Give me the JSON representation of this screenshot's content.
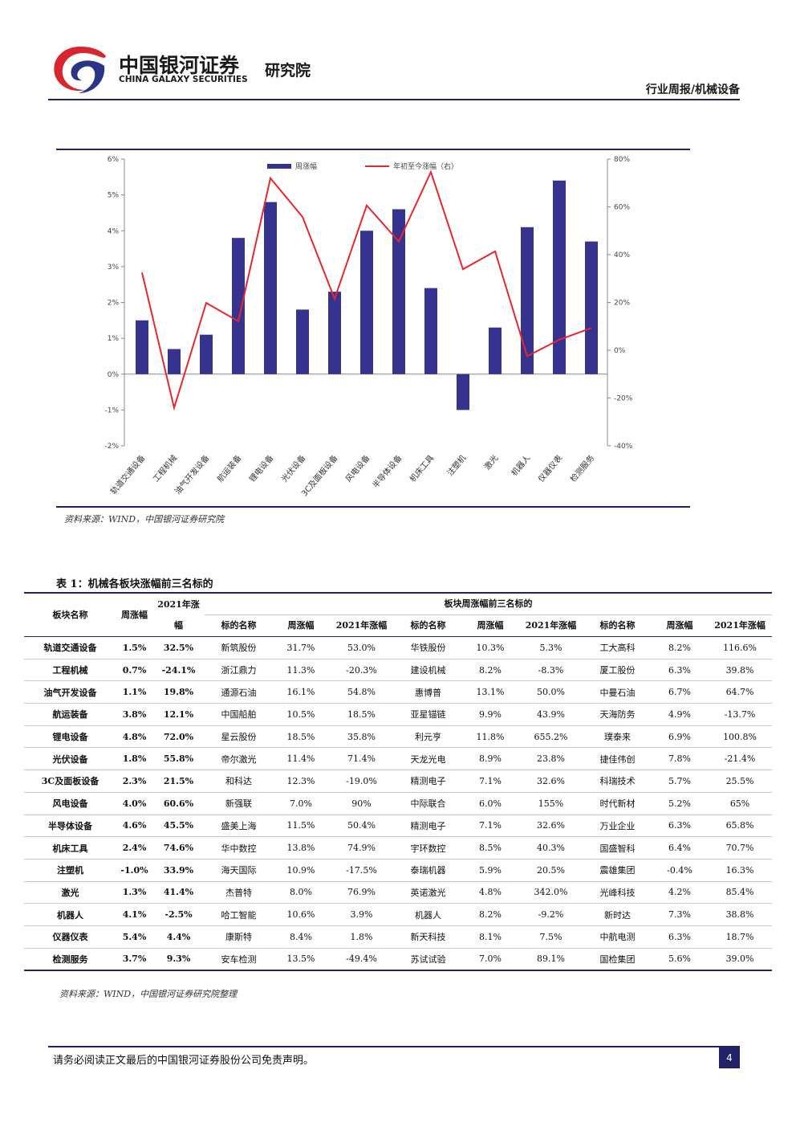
{
  "header": {
    "brand": "中国银河证券",
    "brand_en": "CHINA GALAXY SECURITIES",
    "institute": "研究院",
    "report": "行业周报/机械设备"
  },
  "chart_data": {
    "type": "bar",
    "categories": [
      "轨道交通设备",
      "工程机械",
      "油气开发设备",
      "航运装备",
      "锂电设备",
      "光伏设备",
      "3C及面板设备",
      "风电设备",
      "半导体设备",
      "机床工具",
      "注塑机",
      "激光",
      "机器人",
      "仪器仪表",
      "检测服务"
    ],
    "series": [
      {
        "name": "周涨幅",
        "color": "#35338f",
        "values": [
          1.5,
          0.7,
          1.1,
          3.8,
          4.8,
          1.8,
          2.3,
          4.0,
          4.6,
          2.4,
          -1.0,
          1.3,
          4.1,
          5.4,
          3.7
        ]
      },
      {
        "name": "年初至今涨幅（右）",
        "color": "#e8262c",
        "type": "line",
        "axis": "y2",
        "values": [
          32.5,
          -24.1,
          19.8,
          12.1,
          72.0,
          55.8,
          21.5,
          60.6,
          45.5,
          74.6,
          33.9,
          41.4,
          -2.5,
          4.4,
          9.3
        ]
      }
    ],
    "ylim": [
      -2,
      6
    ],
    "yticks": [
      {
        "value": -2,
        "label": "-2%"
      },
      {
        "value": -1,
        "label": "-1%"
      },
      {
        "value": 0,
        "label": "0%"
      },
      {
        "value": 1,
        "label": "1%"
      },
      {
        "value": 2,
        "label": "2%"
      },
      {
        "value": 3,
        "label": "3%"
      },
      {
        "value": 4,
        "label": "4%"
      },
      {
        "value": 5,
        "label": "5%"
      },
      {
        "value": 6,
        "label": "6%"
      }
    ],
    "y2lim": [
      -40,
      80
    ],
    "y2ticks": [
      {
        "value": -40,
        "label": "-40%"
      },
      {
        "value": -20,
        "label": "-20%"
      },
      {
        "value": 0,
        "label": "0%"
      },
      {
        "value": 20,
        "label": "20%"
      },
      {
        "value": 40,
        "label": "40%"
      },
      {
        "value": 60,
        "label": "60%"
      },
      {
        "value": 80,
        "label": "80%"
      }
    ],
    "legend": "top",
    "grid": false
  },
  "chart_source": "资料来源：WIND，中国银河证券研究院",
  "table": {
    "title": "表 1：机械各板块涨幅前三名标的",
    "headers": [
      "板块名称",
      "周涨幅",
      "2021年涨幅",
      "板块周涨幅前三名标的"
    ],
    "sub_headers": [
      "标的名称",
      "周涨幅",
      "2021年涨幅",
      "标的名称",
      "周涨幅",
      "2021年涨幅",
      "标的名称",
      "周涨幅",
      "2021年涨幅"
    ],
    "rows": [
      [
        "轨道交通设备",
        "1.5%",
        "32.5%",
        "新筑股份",
        "31.7%",
        "53.0%",
        "华铁股份",
        "10.3%",
        "5.3%",
        "工大高科",
        "8.2%",
        "116.6%"
      ],
      [
        "工程机械",
        "0.7%",
        "-24.1%",
        "浙江鼎力",
        "11.3%",
        "-20.3%",
        "建设机械",
        "8.2%",
        "-8.3%",
        "厦工股份",
        "6.3%",
        "39.8%"
      ],
      [
        "油气开发设备",
        "1.1%",
        "19.8%",
        "通源石油",
        "16.1%",
        "54.8%",
        "惠博普",
        "13.1%",
        "50.0%",
        "中曼石油",
        "6.7%",
        "64.7%"
      ],
      [
        "航运装备",
        "3.8%",
        "12.1%",
        "中国船舶",
        "10.5%",
        "18.5%",
        "亚星锚链",
        "9.9%",
        "43.9%",
        "天海防务",
        "4.9%",
        "-13.7%"
      ],
      [
        "锂电设备",
        "4.8%",
        "72.0%",
        "星云股份",
        "18.5%",
        "35.8%",
        "利元亨",
        "11.8%",
        "655.2%",
        "璞泰来",
        "6.9%",
        "100.8%"
      ],
      [
        "光伏设备",
        "1.8%",
        "55.8%",
        "帝尔激光",
        "11.4%",
        "71.4%",
        "天龙光电",
        "8.9%",
        "23.8%",
        "捷佳伟创",
        "7.8%",
        "-21.4%"
      ],
      [
        "3C及面板设备",
        "2.3%",
        "21.5%",
        "和科达",
        "12.3%",
        "-19.0%",
        "精测电子",
        "7.1%",
        "32.6%",
        "科瑞技术",
        "5.7%",
        "25.5%"
      ],
      [
        "风电设备",
        "4.0%",
        "60.6%",
        "新强联",
        "7.0%",
        "90%",
        "中际联合",
        "6.0%",
        "155%",
        "时代新材",
        "5.2%",
        "65%"
      ],
      [
        "半导体设备",
        "4.6%",
        "45.5%",
        "盛美上海",
        "11.5%",
        "50.4%",
        "精测电子",
        "7.1%",
        "32.6%",
        "万业企业",
        "6.3%",
        "65.8%"
      ],
      [
        "机床工具",
        "2.4%",
        "74.6%",
        "华中数控",
        "13.8%",
        "74.9%",
        "宇环数控",
        "8.5%",
        "40.3%",
        "国盛智科",
        "6.4%",
        "70.7%"
      ],
      [
        "注塑机",
        "-1.0%",
        "33.9%",
        "海天国际",
        "10.9%",
        "-17.5%",
        "泰瑞机器",
        "5.9%",
        "20.5%",
        "震雄集团",
        "-0.4%",
        "16.3%"
      ],
      [
        "激光",
        "1.3%",
        "41.4%",
        "杰普特",
        "8.0%",
        "76.9%",
        "英诺激光",
        "4.8%",
        "342.0%",
        "光峰科技",
        "4.2%",
        "85.4%"
      ],
      [
        "机器人",
        "4.1%",
        "-2.5%",
        "哈工智能",
        "10.6%",
        "3.9%",
        "机器人",
        "8.2%",
        "-9.2%",
        "新时达",
        "7.3%",
        "38.8%"
      ],
      [
        "仪器仪表",
        "5.4%",
        "4.4%",
        "康斯特",
        "8.4%",
        "1.8%",
        "新天科技",
        "8.1%",
        "7.5%",
        "中航电测",
        "6.3%",
        "18.7%"
      ],
      [
        "检测服务",
        "3.7%",
        "9.3%",
        "安车检测",
        "13.5%",
        "-49.4%",
        "苏试试验",
        "7.0%",
        "89.1%",
        "国检集团",
        "5.6%",
        "39.0%"
      ]
    ],
    "source": "资料来源：WIND，中国银河证券研究院整理"
  },
  "footer": {
    "disclaimer": "请务必阅读正文最后的中国银河证券股份公司免责声明。",
    "page": "4"
  }
}
